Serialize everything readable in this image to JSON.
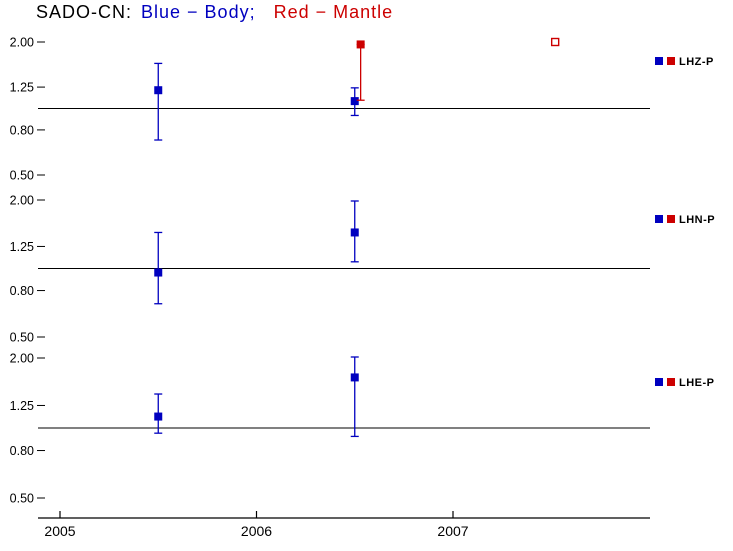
{
  "title": {
    "station": "SADO-CN:",
    "body_segment": "Blue − Body;",
    "mantle_segment": "Red − Mantle"
  },
  "colors": {
    "body_blue": "#0000bf",
    "mantle_red": "#cc0000",
    "axis_black": "#000000",
    "background": "#ffffff"
  },
  "chart_data": {
    "type": "scatter",
    "title": "SADO-CN: Blue − Body; Red − Mantle",
    "x_ticks": [
      "2005",
      "2006",
      "2007"
    ],
    "x_range": [
      2004.89,
      2008.0
    ],
    "y_scale": "log2",
    "y_ticks": [
      "2.00",
      "1.25",
      "0.80",
      "0.50"
    ],
    "y_range": [
      0.5,
      2.0
    ],
    "reference_value": 1.0,
    "grid": false,
    "legend_position": "right",
    "error_bars": true,
    "panels": [
      {
        "label": "LHZ-P",
        "series": [
          {
            "name": "Body",
            "color": "#0000bf",
            "points": [
              {
                "x": 2005.5,
                "y": 1.21,
                "y_lo": 0.72,
                "y_hi": 1.6
              },
              {
                "x": 2006.5,
                "y": 1.08,
                "y_lo": 0.93,
                "y_hi": 1.24
              }
            ]
          },
          {
            "name": "Mantle",
            "color": "#cc0000",
            "points": [
              {
                "x": 2006.53,
                "y": 1.95,
                "y_lo": 1.09,
                "y_hi": 1.95
              },
              {
                "x": 2007.52,
                "y": 2.0,
                "open": true
              }
            ]
          }
        ]
      },
      {
        "label": "LHN-P",
        "series": [
          {
            "name": "Body",
            "color": "#0000bf",
            "points": [
              {
                "x": 2005.5,
                "y": 0.96,
                "y_lo": 0.7,
                "y_hi": 1.44
              },
              {
                "x": 2006.5,
                "y": 1.44,
                "y_lo": 1.07,
                "y_hi": 1.98
              }
            ]
          },
          {
            "name": "Mantle",
            "color": "#cc0000",
            "points": []
          }
        ]
      },
      {
        "label": "LHE-P",
        "series": [
          {
            "name": "Body",
            "color": "#0000bf",
            "points": [
              {
                "x": 2005.5,
                "y": 1.12,
                "y_lo": 0.95,
                "y_hi": 1.4
              },
              {
                "x": 2006.5,
                "y": 1.65,
                "y_lo": 0.92,
                "y_hi": 2.02
              }
            ]
          },
          {
            "name": "Mantle",
            "color": "#cc0000",
            "points": []
          }
        ]
      }
    ]
  }
}
